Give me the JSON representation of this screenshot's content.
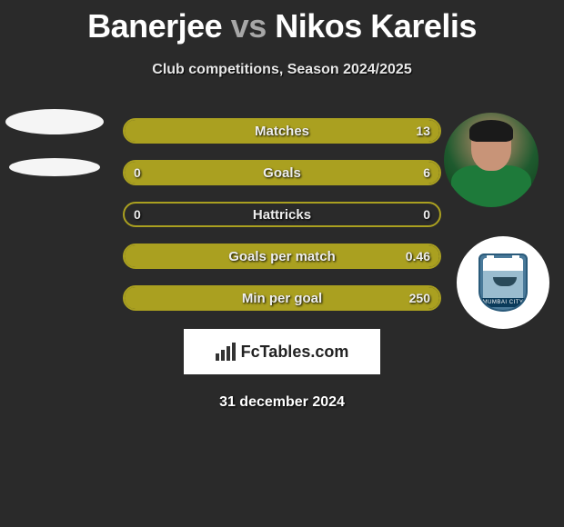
{
  "title": {
    "player1": "Banerjee",
    "vs": "vs",
    "player2": "Nikos Karelis"
  },
  "subtitle": "Club competitions, Season 2024/2025",
  "accent_color": "#aaa020",
  "background_color": "#2a2a2a",
  "stats": [
    {
      "label": "Matches",
      "left_val": "",
      "right_val": "13",
      "left_fill_pct": 0,
      "right_fill_pct": 100
    },
    {
      "label": "Goals",
      "left_val": "0",
      "right_val": "6",
      "left_fill_pct": 0,
      "right_fill_pct": 100
    },
    {
      "label": "Hattricks",
      "left_val": "0",
      "right_val": "0",
      "left_fill_pct": 0,
      "right_fill_pct": 0
    },
    {
      "label": "Goals per match",
      "left_val": "",
      "right_val": "0.46",
      "left_fill_pct": 0,
      "right_fill_pct": 100
    },
    {
      "label": "Min per goal",
      "left_val": "",
      "right_val": "250",
      "left_fill_pct": 0,
      "right_fill_pct": 100
    }
  ],
  "brand": {
    "text": "FcTables.com"
  },
  "date": "31 december 2024",
  "right_player": {
    "name": "Nikos Karelis"
  },
  "right_club": {
    "name": "Mumbai City FC",
    "band_text": "MUMBAI CITY"
  }
}
